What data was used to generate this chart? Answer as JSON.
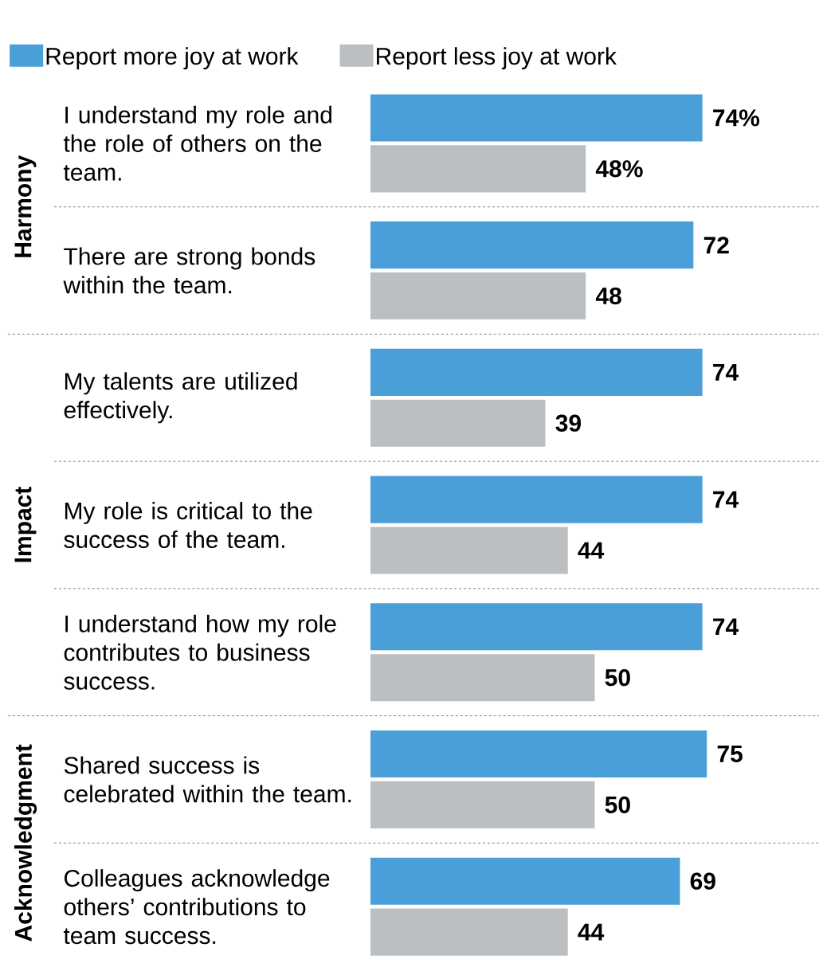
{
  "chart_data": {
    "type": "bar",
    "orientation": "horizontal",
    "categories": [
      "I understand my role and the role of others on the team.",
      "There are strong bonds within the team.",
      "My talents are utilized effectively.",
      "My role is critical to the success of the team.",
      "I understand how my role contributes to business success.",
      "Shared success is celebrated within the team.",
      "Colleagues acknowledge others’ contributions to team success."
    ],
    "series": [
      {
        "name": "Report more joy at work",
        "color": "#4a9fd8",
        "values": [
          74,
          72,
          74,
          74,
          74,
          75,
          69
        ],
        "value_labels": [
          "74%",
          "72",
          "74",
          "74",
          "74",
          "75",
          "69"
        ]
      },
      {
        "name": "Report less joy at work",
        "color": "#bcbfc2",
        "values": [
          48,
          48,
          39,
          44,
          50,
          50,
          44
        ],
        "value_labels": [
          "48%",
          "48",
          "39",
          "44",
          "50",
          "50",
          "44"
        ]
      }
    ],
    "xlim": [
      0,
      100
    ],
    "tick_labels": "y",
    "legend": "top",
    "annotations": [
      "Harmony",
      "Impact",
      "Acknowledgment"
    ]
  }
}
